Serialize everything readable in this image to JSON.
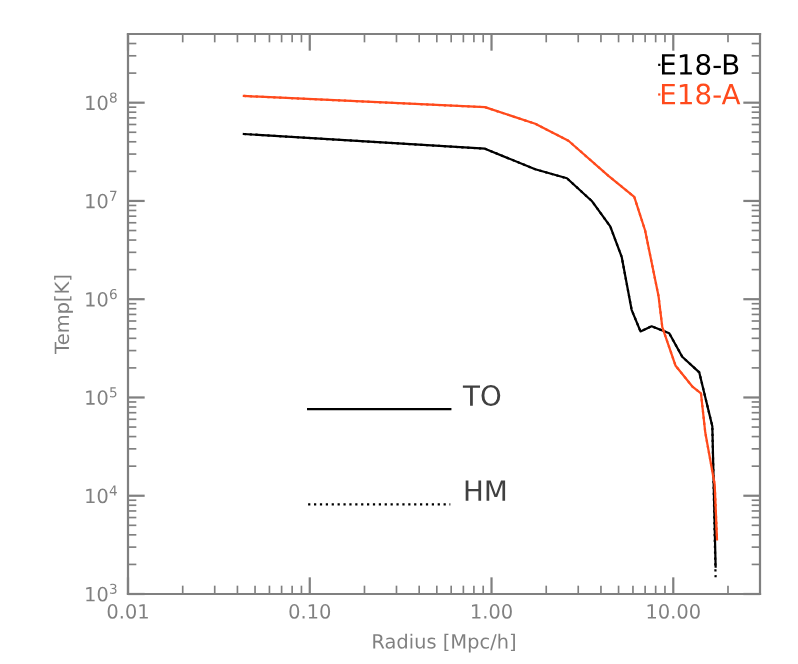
{
  "chart_data": {
    "type": "line",
    "xlabel": "Radius [Mpc/h]",
    "ylabel": "Temp[K]",
    "log": "xy",
    "xlim": [
      0.01,
      30
    ],
    "ylim": [
      1000,
      500000000
    ],
    "xticks": [
      {
        "value": 0.01,
        "label": "0.01"
      },
      {
        "value": 0.1,
        "label": "0.10"
      },
      {
        "value": 1,
        "label": "1.00"
      },
      {
        "value": 10,
        "label": "10.00"
      }
    ],
    "yticks": [
      {
        "value": 1000,
        "label": "10$^{3}$"
      },
      {
        "value": 10000,
        "label": "10$^{4}$"
      },
      {
        "value": 100000,
        "label": "10$^{5}$"
      },
      {
        "value": 1000000,
        "label": "10$^{6}$"
      },
      {
        "value": 10000000,
        "label": "10$^{7}$"
      },
      {
        "value": 100000000,
        "label": "10$^{8}$"
      }
    ],
    "legend": "top right",
    "grid": false,
    "series": [
      {
        "name": "E18-B",
        "color": "#000000",
        "line_style": "solid",
        "x": [
          0.0434,
          0.92,
          1.74,
          2.6,
          3.56,
          4.5,
          5.2,
          5.9,
          6.6,
          7.6,
          9.5,
          11.2,
          13.9,
          16.4,
          17.1
        ],
        "values": [
          48000000,
          34000000,
          21000000,
          17000000,
          10000000,
          5500000,
          2700000,
          780000,
          470000,
          530000,
          450000,
          260000,
          180000,
          51000,
          1900
        ]
      },
      {
        "color": "#000000",
        "line_style": "dotted",
        "x": [
          0.0434,
          0.92,
          1.74,
          2.6,
          3.56,
          4.5,
          5.2,
          5.9,
          6.6,
          7.6,
          9.5,
          11.2,
          13.9,
          16.4,
          17.1
        ],
        "values": [
          48000000,
          34000000,
          21000000,
          17000000,
          10000000,
          5500000,
          2700000,
          780000,
          470000,
          530000,
          450000,
          260000,
          180000,
          51000,
          1400
        ]
      },
      {
        "name": "E18-A",
        "color": "#ff4a1c",
        "line_style": "solid",
        "x": [
          0.0434,
          0.92,
          1.74,
          2.65,
          4.4,
          6.1,
          7.0,
          8.3,
          8.7,
          10.3,
          12.7,
          14.2,
          15.0,
          16.9,
          17.4
        ],
        "values": [
          117000000,
          90000000,
          61000000,
          41000000,
          18000000,
          11000000,
          5000000,
          1070000,
          520000,
          210000,
          130000,
          110000,
          44000,
          13000,
          3600
        ]
      },
      {
        "color": "#ff4a1c",
        "line_style": "dotted",
        "x": [
          0.0434,
          0.92,
          1.74,
          2.65,
          4.4,
          6.1,
          7.0,
          8.3,
          8.7,
          10.3,
          12.7,
          14.2,
          15.0,
          16.9,
          17.4
        ],
        "values": [
          117000000,
          90000000,
          61000000,
          41000000,
          18000000,
          11000000,
          5000000,
          1070000,
          520000,
          210000,
          130000,
          110000,
          44000,
          13000,
          3600
        ]
      }
    ],
    "annotations": [
      "TO",
      "HM"
    ]
  }
}
